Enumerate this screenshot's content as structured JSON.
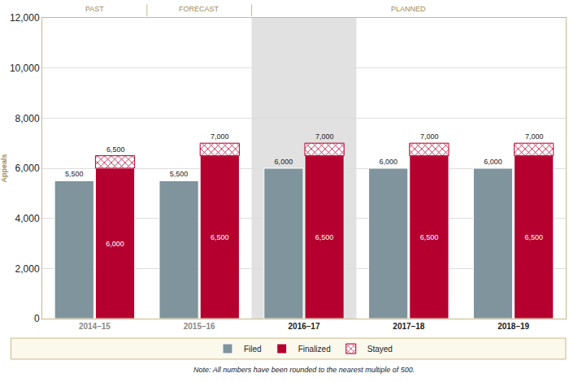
{
  "chart_data": {
    "type": "bar",
    "y_label": "Appeals",
    "categories": [
      "2014–15",
      "2015–16",
      "2016–17",
      "2017–18",
      "2018–19"
    ],
    "series": [
      {
        "name": "Filed",
        "color": "#7f949c",
        "data_labels": true,
        "values": [
          5500,
          5500,
          6000,
          6000,
          6000
        ],
        "value_labels": [
          "5,500",
          "5,500",
          "6,000",
          "6,000",
          "6,000"
        ]
      },
      {
        "name": "Finalized",
        "color": "#b5002f",
        "data_labels": true,
        "values": [
          6000,
          6500,
          6500,
          6500,
          6500
        ],
        "value_labels": [
          "6,000",
          "6,500",
          "6,500",
          "6,500",
          "6,500"
        ]
      },
      {
        "name": "Stayed",
        "color": "#b5002f",
        "marker": "crosshatch",
        "stacked": true,
        "data_labels": false,
        "values": [
          500,
          500,
          500,
          500,
          500
        ]
      }
    ],
    "annotations": [
      {
        "category": "2014–15",
        "y": 6500,
        "text": "6,500"
      },
      {
        "category": "2015–16",
        "y": 7000,
        "text": "7,000"
      },
      {
        "category": "2016–17",
        "y": 7000,
        "text": "7,000"
      },
      {
        "category": "2017–18",
        "y": 7000,
        "text": "7,000"
      },
      {
        "category": "2018–19",
        "y": 7000,
        "text": "7,000"
      }
    ],
    "sections": [
      {
        "label": "PAST",
        "categories": [
          "2014–15"
        ]
      },
      {
        "label": "FORECAST",
        "categories": [
          "2015–16"
        ]
      },
      {
        "label": "PLANNED",
        "categories": [
          "2016–17",
          "2017–18",
          "2018–19"
        ]
      }
    ],
    "note": "Note: All numbers have been rounded to the nearest multiple of 500.",
    "ylim": [
      0,
      12000
    ],
    "yticks": [
      0,
      {
        "value": 2000,
        "label": "2,000"
      },
      {
        "value": 4000,
        "label": "4,000"
      },
      {
        "value": 6000,
        "label": "6,000"
      },
      {
        "value": 8000,
        "label": "8,000"
      },
      {
        "value": 10000,
        "label": "10,000"
      },
      {
        "value": 12000,
        "label": "12,000"
      }
    ],
    "grid": true,
    "legend": "bottom"
  }
}
